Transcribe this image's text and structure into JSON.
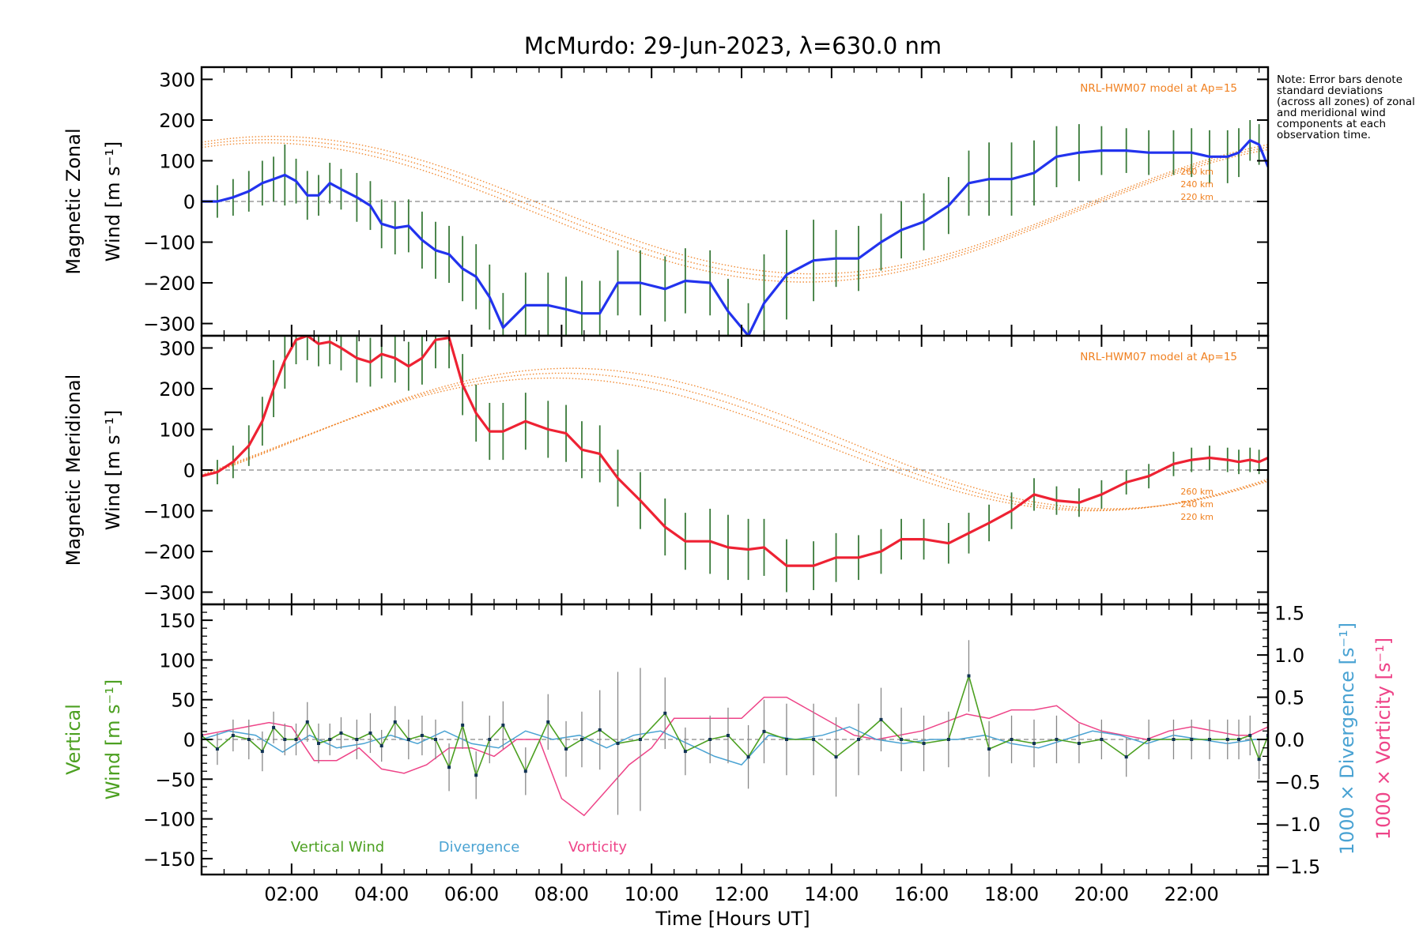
{
  "chart_data": {
    "type": "line",
    "title": "McMurdo: 29-Jun-2023, λ=630.0 nm",
    "xlabel": "Time [Hours UT]",
    "xlim": [
      0.0,
      23.7
    ],
    "x_ticks": [
      "02:00",
      "04:00",
      "06:00",
      "08:00",
      "10:00",
      "12:00",
      "14:00",
      "16:00",
      "18:00",
      "20:00",
      "22:00"
    ],
    "note": "Note: Error bars denote standard deviations (across all zones) of zonal and meridional wind components at each observation time.",
    "model_label": "NRL-HWM07 model at Ap=15",
    "model_altitudes": [
      "260 km",
      "240 km",
      "220 km"
    ],
    "colors": {
      "zonal": "#2233ee",
      "meridional": "#ee2233",
      "vertical": "#4ca021",
      "divergence": "#4aa3d3",
      "vorticity": "#ee4488",
      "model": "#f08020",
      "errorbar": "#3a7a3a",
      "grey": "#888888"
    },
    "panels": [
      {
        "name": "zonal",
        "ylabel_line1": "Magnetic Zonal",
        "ylabel_line2": "Wind [m s⁻¹]",
        "ylim": [
          -330,
          330
        ],
        "yticks": [
          -300,
          -200,
          -100,
          0,
          100,
          200,
          300
        ],
        "series": {
          "x": [
            0.0,
            0.35,
            0.7,
            1.05,
            1.35,
            1.6,
            1.85,
            2.1,
            2.35,
            2.6,
            2.85,
            3.1,
            3.45,
            3.75,
            4.0,
            4.3,
            4.6,
            4.9,
            5.2,
            5.5,
            5.8,
            6.1,
            6.4,
            6.7,
            7.2,
            7.7,
            8.1,
            8.45,
            8.85,
            9.25,
            9.75,
            10.3,
            10.75,
            11.3,
            11.7,
            12.15,
            12.5,
            13.0,
            13.6,
            14.1,
            14.6,
            15.1,
            15.55,
            16.05,
            16.6,
            17.05,
            17.5,
            18.0,
            18.5,
            19.0,
            19.5,
            20.0,
            20.55,
            21.05,
            21.6,
            22.0,
            22.4,
            22.8,
            23.05,
            23.3,
            23.5,
            23.7
          ],
          "y": [
            0,
            0,
            10,
            25,
            45,
            55,
            65,
            50,
            15,
            15,
            45,
            30,
            10,
            -10,
            -55,
            -65,
            -60,
            -95,
            -120,
            -130,
            -165,
            -185,
            -235,
            -310,
            -255,
            -255,
            -265,
            -275,
            -275,
            -200,
            -200,
            -215,
            -195,
            -200,
            -270,
            -330,
            -250,
            -180,
            -145,
            -140,
            -140,
            -100,
            -70,
            -50,
            -10,
            45,
            55,
            55,
            70,
            110,
            120,
            125,
            125,
            120,
            120,
            120,
            110,
            110,
            120,
            150,
            140,
            85
          ],
          "err": [
            40,
            40,
            45,
            50,
            55,
            55,
            75,
            55,
            60,
            50,
            50,
            50,
            60,
            60,
            60,
            65,
            65,
            70,
            70,
            70,
            80,
            80,
            80,
            85,
            80,
            80,
            80,
            80,
            80,
            80,
            80,
            80,
            80,
            80,
            80,
            80,
            120,
            110,
            100,
            70,
            80,
            70,
            70,
            70,
            70,
            80,
            90,
            90,
            80,
            75,
            70,
            60,
            55,
            55,
            55,
            60,
            65,
            65,
            60,
            50,
            50,
            55
          ]
        },
        "models": [
          {
            "altitude": "260 km",
            "min": -178,
            "max": 160,
            "peak_hour": 1.6
          },
          {
            "altitude": "240 km",
            "min": -188,
            "max": 152,
            "peak_hour": 1.5
          },
          {
            "altitude": "220 km",
            "min": -198,
            "max": 144,
            "peak_hour": 1.4
          }
        ]
      },
      {
        "name": "meridional",
        "ylabel_line1": "Magnetic Meridional",
        "ylabel_line2": "Wind [m s⁻¹]",
        "ylim": [
          -330,
          330
        ],
        "yticks": [
          -300,
          -200,
          -100,
          0,
          100,
          200,
          300
        ],
        "series": {
          "x": [
            0.0,
            0.35,
            0.7,
            1.05,
            1.35,
            1.6,
            1.85,
            2.1,
            2.35,
            2.6,
            2.85,
            3.1,
            3.45,
            3.75,
            4.0,
            4.3,
            4.6,
            4.9,
            5.2,
            5.5,
            5.8,
            6.1,
            6.4,
            6.7,
            7.2,
            7.7,
            8.1,
            8.45,
            8.85,
            9.25,
            9.75,
            10.3,
            10.75,
            11.3,
            11.7,
            12.15,
            12.5,
            13.0,
            13.6,
            14.1,
            14.6,
            15.1,
            15.55,
            16.05,
            16.6,
            17.05,
            17.5,
            18.0,
            18.5,
            19.0,
            19.5,
            20.0,
            20.55,
            21.05,
            21.6,
            22.0,
            22.4,
            22.8,
            23.05,
            23.3,
            23.5,
            23.7
          ],
          "y": [
            -15,
            -5,
            20,
            60,
            120,
            200,
            270,
            320,
            330,
            310,
            315,
            300,
            275,
            265,
            285,
            275,
            255,
            275,
            320,
            325,
            210,
            140,
            95,
            95,
            120,
            100,
            90,
            50,
            40,
            -20,
            -75,
            -140,
            -175,
            -175,
            -190,
            -195,
            -190,
            -235,
            -235,
            -215,
            -215,
            -200,
            -170,
            -170,
            -180,
            -155,
            -130,
            -100,
            -60,
            -75,
            -80,
            -60,
            -30,
            -15,
            15,
            25,
            30,
            25,
            20,
            25,
            20,
            30
          ],
          "err": [
            30,
            30,
            40,
            50,
            60,
            70,
            70,
            60,
            60,
            55,
            55,
            55,
            60,
            60,
            60,
            60,
            60,
            65,
            70,
            75,
            75,
            70,
            70,
            70,
            70,
            70,
            70,
            70,
            70,
            70,
            70,
            70,
            70,
            80,
            80,
            75,
            70,
            65,
            60,
            60,
            55,
            55,
            50,
            50,
            50,
            50,
            45,
            45,
            40,
            35,
            35,
            35,
            30,
            30,
            30,
            30,
            30,
            30,
            30,
            30,
            30,
            30
          ]
        },
        "models": [
          {
            "altitude": "260 km",
            "min": -95,
            "max": 250,
            "peak_hour": 8.2
          },
          {
            "altitude": "240 km",
            "min": -98,
            "max": 238,
            "peak_hour": 8.0
          },
          {
            "altitude": "220 km",
            "min": -100,
            "max": 226,
            "peak_hour": 7.8
          }
        ]
      },
      {
        "name": "vertical",
        "ylabel_line1": "Vertical",
        "ylabel_line2": "Wind [m s⁻¹]",
        "right_label_1": "1000 × Divergence [s⁻¹]",
        "right_label_2": "1000 × Vorticity [s⁻¹]",
        "ylim": [
          -170,
          170
        ],
        "yticks": [
          -150,
          -100,
          -50,
          0,
          50,
          100,
          150
        ],
        "right_ylim": [
          -1.6,
          1.6
        ],
        "right_yticks": [
          -1.5,
          -1.0,
          -0.5,
          0.0,
          0.5,
          1.0,
          1.5
        ],
        "legend": [
          "Vertical Wind",
          "Divergence",
          "Vorticity"
        ],
        "vertical_wind": {
          "x": [
            0.0,
            0.35,
            0.7,
            1.05,
            1.35,
            1.6,
            1.85,
            2.1,
            2.35,
            2.6,
            2.85,
            3.1,
            3.45,
            3.75,
            4.0,
            4.3,
            4.6,
            4.9,
            5.2,
            5.5,
            5.8,
            6.1,
            6.4,
            6.7,
            7.2,
            7.7,
            8.1,
            8.45,
            8.85,
            9.25,
            9.75,
            10.3,
            10.75,
            11.3,
            11.7,
            12.15,
            12.5,
            13.0,
            13.6,
            14.1,
            14.6,
            15.1,
            15.55,
            16.05,
            16.6,
            17.05,
            17.5,
            18.0,
            18.5,
            19.0,
            19.5,
            20.0,
            20.55,
            21.05,
            21.6,
            22.0,
            22.4,
            22.8,
            23.05,
            23.3,
            23.5,
            23.7
          ],
          "y": [
            5,
            -12,
            5,
            0,
            -15,
            15,
            0,
            0,
            22,
            -5,
            0,
            8,
            0,
            8,
            -8,
            22,
            0,
            5,
            0,
            -35,
            18,
            -45,
            0,
            18,
            -40,
            22,
            -12,
            0,
            12,
            -5,
            0,
            33,
            -15,
            0,
            5,
            -22,
            10,
            0,
            0,
            -22,
            0,
            25,
            0,
            -5,
            0,
            80,
            -12,
            0,
            -5,
            0,
            -5,
            0,
            -22,
            0,
            0,
            0,
            0,
            0,
            0,
            5,
            -25,
            5
          ],
          "err": [
            20,
            20,
            20,
            25,
            25,
            20,
            20,
            20,
            25,
            25,
            20,
            20,
            25,
            25,
            20,
            20,
            25,
            25,
            25,
            30,
            30,
            30,
            30,
            30,
            30,
            35,
            35,
            35,
            50,
            90,
            90,
            45,
            30,
            30,
            35,
            40,
            40,
            45,
            45,
            50,
            45,
            40,
            40,
            35,
            35,
            45,
            35,
            30,
            30,
            30,
            25,
            25,
            25,
            25,
            25,
            25,
            25,
            25,
            25,
            25,
            25,
            25
          ]
        },
        "divergence": {
          "x": [
            0.0,
            0.6,
            1.2,
            1.8,
            2.4,
            3.0,
            3.6,
            4.2,
            4.8,
            5.4,
            6.0,
            6.6,
            7.2,
            7.8,
            8.4,
            9.0,
            9.6,
            10.2,
            10.8,
            11.4,
            12.0,
            12.6,
            13.2,
            13.8,
            14.4,
            15.0,
            15.6,
            16.2,
            16.8,
            17.4,
            18.0,
            18.6,
            19.2,
            19.8,
            20.4,
            21.0,
            21.6,
            22.2,
            22.8,
            23.4,
            23.7
          ],
          "y": [
            0.0,
            0.1,
            0.05,
            -0.15,
            0.05,
            -0.1,
            -0.05,
            0.05,
            -0.05,
            0.1,
            -0.05,
            -0.1,
            0.1,
            0.0,
            0.05,
            -0.1,
            0.05,
            0.1,
            -0.05,
            -0.2,
            -0.3,
            0.05,
            0.0,
            0.05,
            0.15,
            0.0,
            -0.05,
            0.0,
            0.0,
            0.05,
            -0.05,
            -0.1,
            0.0,
            0.1,
            0.05,
            -0.05,
            0.05,
            0.0,
            -0.05,
            0.0,
            0.0
          ]
        },
        "vorticity": {
          "x": [
            0.0,
            0.5,
            1.0,
            1.5,
            2.0,
            2.5,
            3.0,
            3.5,
            4.0,
            4.5,
            5.0,
            5.5,
            6.0,
            6.5,
            7.0,
            7.5,
            8.0,
            8.5,
            9.0,
            9.5,
            10.0,
            10.5,
            11.0,
            11.5,
            12.0,
            12.5,
            13.0,
            13.5,
            14.0,
            14.5,
            15.0,
            15.5,
            16.0,
            16.5,
            17.0,
            17.5,
            18.0,
            18.5,
            19.0,
            19.5,
            20.0,
            20.5,
            21.0,
            21.5,
            22.0,
            22.5,
            23.0,
            23.3,
            23.7
          ],
          "y": [
            0.05,
            0.1,
            0.15,
            0.2,
            0.15,
            -0.25,
            -0.25,
            -0.1,
            -0.35,
            -0.4,
            -0.3,
            -0.1,
            -0.1,
            -0.2,
            0.0,
            0.0,
            -0.7,
            -0.9,
            -0.6,
            -0.3,
            -0.1,
            0.25,
            0.25,
            0.25,
            0.25,
            0.5,
            0.5,
            0.35,
            0.2,
            0.05,
            0.0,
            0.05,
            0.1,
            0.2,
            0.3,
            0.25,
            0.35,
            0.35,
            0.4,
            0.2,
            0.1,
            0.05,
            0.0,
            0.1,
            0.15,
            0.1,
            0.05,
            0.05,
            0.15
          ]
        }
      }
    ]
  }
}
